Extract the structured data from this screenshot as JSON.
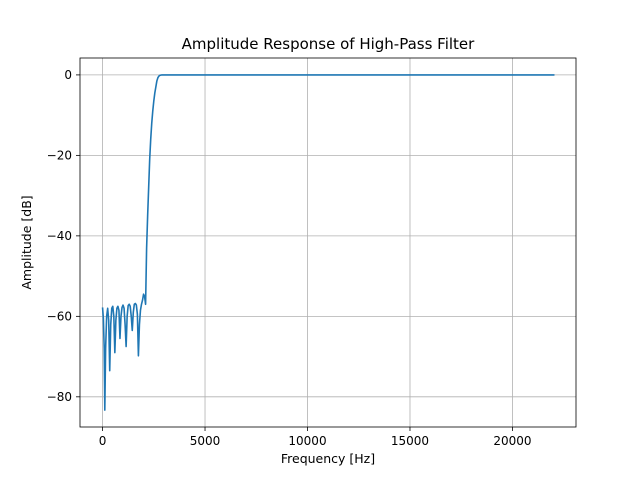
{
  "chart_data": {
    "type": "line",
    "title": "Amplitude Response of High-Pass Filter",
    "xlabel": "Frequency [Hz]",
    "ylabel": "Amplitude [dB]",
    "xlim": [
      -1100,
      23100
    ],
    "ylim": [
      -87.5,
      4.2
    ],
    "xticks": [
      0,
      5000,
      10000,
      15000,
      20000
    ],
    "xtick_labels": [
      "0",
      "5000",
      "10000",
      "15000",
      "20000"
    ],
    "yticks": [
      0,
      -20,
      -40,
      -60,
      -80
    ],
    "ytick_labels": [
      "0",
      "−20",
      "−40",
      "−60",
      "−80"
    ],
    "grid": true,
    "line_color": "#1f77b4",
    "series": [
      {
        "x": [
          0,
          40,
          80,
          110,
          150,
          200,
          250,
          300,
          350,
          400,
          450,
          500,
          550,
          600,
          650,
          700,
          750,
          800,
          850,
          900,
          950,
          1000,
          1050,
          1100,
          1150,
          1200,
          1250,
          1300,
          1350,
          1400,
          1450,
          1500,
          1550,
          1600,
          1650,
          1700,
          1750,
          1800,
          1850,
          1900,
          1950,
          2000,
          2050,
          2100,
          2150,
          2200,
          2250,
          2300,
          2350,
          2400,
          2450,
          2500,
          2550,
          2600,
          2650,
          2700,
          2750,
          2800,
          2900,
          3000,
          3100,
          3200,
          3300,
          3400,
          3500,
          3600,
          3700,
          4000,
          5000,
          10000,
          15000,
          20000,
          22050
        ],
        "y": [
          -57.8,
          -60.5,
          -68,
          -83.3,
          -68,
          -60,
          -58,
          -61,
          -73.5,
          -62,
          -58,
          -57.5,
          -60,
          -69,
          -61,
          -58,
          -57.5,
          -58.5,
          -65.5,
          -60,
          -57.8,
          -57.2,
          -58,
          -62,
          -67.5,
          -60,
          -57.3,
          -57,
          -57.5,
          -60,
          -63.5,
          -59,
          -57,
          -56.8,
          -57.2,
          -59.5,
          -69.8,
          -62,
          -58.5,
          -57,
          -56,
          -54.5,
          -55,
          -57,
          -43,
          -35,
          -28,
          -21,
          -16,
          -12,
          -9,
          -6.5,
          -4.5,
          -3,
          -1.5,
          -0.7,
          -0.3,
          -0.1,
          0,
          0,
          0,
          0,
          0,
          0,
          0,
          0,
          0,
          0,
          0,
          0,
          0,
          0,
          0
        ]
      }
    ]
  }
}
